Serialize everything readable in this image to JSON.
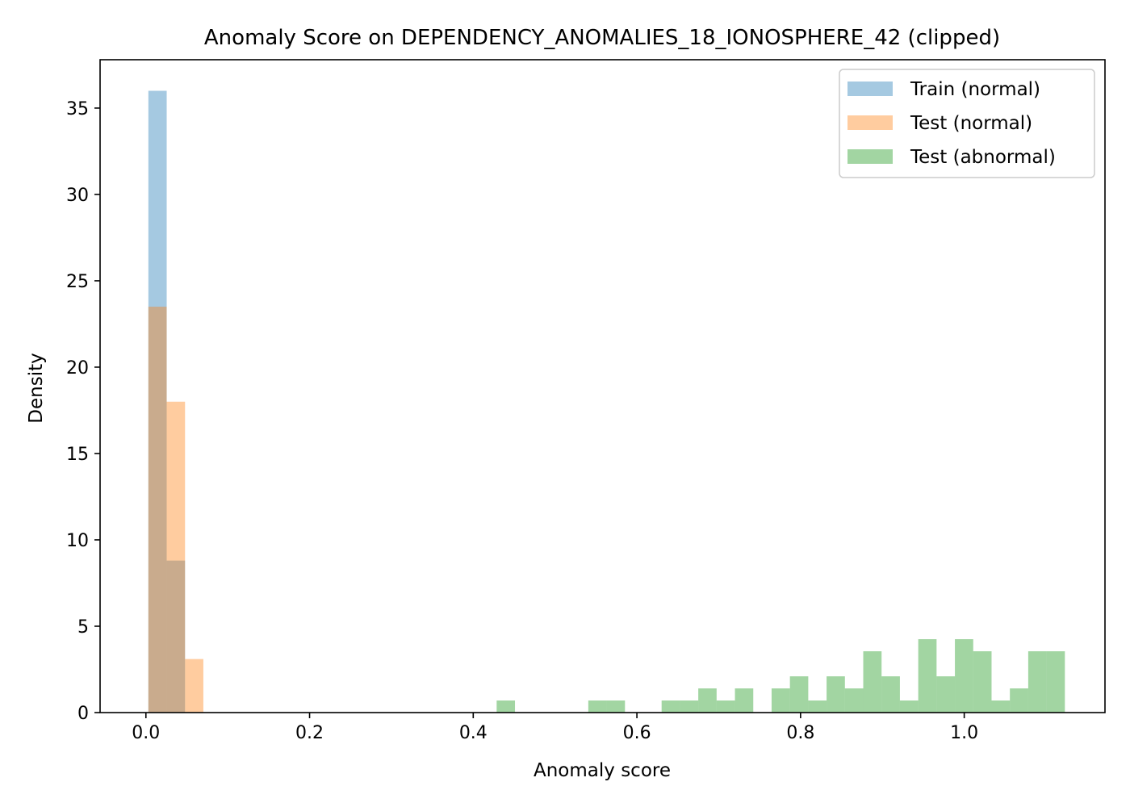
{
  "chart_data": {
    "type": "bar",
    "title": "Anomaly Score on DEPENDENCY_ANOMALIES_18_IONOSPHERE_42 (clipped)",
    "xlabel": "Anomaly score",
    "ylabel": "Density",
    "xlim": [
      -0.056,
      1.172
    ],
    "ylim": [
      0,
      37.8
    ],
    "xticks": [
      0.0,
      0.2,
      0.4,
      0.6,
      0.8,
      1.0
    ],
    "xtick_labels": [
      "0.0",
      "0.2",
      "0.4",
      "0.6",
      "0.8",
      "1.0"
    ],
    "yticks": [
      0,
      5,
      10,
      15,
      20,
      25,
      30,
      35
    ],
    "ytick_labels": [
      "0",
      "5",
      "10",
      "15",
      "20",
      "25",
      "30",
      "35"
    ],
    "grid": false,
    "legend_position": "top-right",
    "bin_width": 0.0224,
    "series": [
      {
        "name": "Train (normal)",
        "color": "#1f77b4",
        "opacity": 0.4,
        "bins": [
          {
            "x0": 0.003,
            "x1": 0.0254,
            "density": 36.0
          },
          {
            "x0": 0.0254,
            "x1": 0.0478,
            "density": 8.8
          }
        ]
      },
      {
        "name": "Test (normal)",
        "color": "#ff7f0e",
        "opacity": 0.4,
        "bins": [
          {
            "x0": 0.003,
            "x1": 0.0254,
            "density": 23.5
          },
          {
            "x0": 0.0254,
            "x1": 0.0478,
            "density": 18.0
          },
          {
            "x0": 0.0478,
            "x1": 0.0702,
            "density": 3.1
          }
        ]
      },
      {
        "name": "Test (abnormal)",
        "color": "#2ca02c",
        "opacity": 0.44,
        "bins": [
          {
            "x0": 0.4286,
            "x1": 0.451,
            "density": 0.7
          },
          {
            "x0": 0.5406,
            "x1": 0.563,
            "density": 0.7
          },
          {
            "x0": 0.563,
            "x1": 0.5854,
            "density": 0.7
          },
          {
            "x0": 0.6302,
            "x1": 0.6526,
            "density": 0.7
          },
          {
            "x0": 0.6526,
            "x1": 0.675,
            "density": 0.7
          },
          {
            "x0": 0.675,
            "x1": 0.6974,
            "density": 1.4
          },
          {
            "x0": 0.6974,
            "x1": 0.7198,
            "density": 0.7
          },
          {
            "x0": 0.7198,
            "x1": 0.7422,
            "density": 1.4
          },
          {
            "x0": 0.7646,
            "x1": 0.787,
            "density": 1.4
          },
          {
            "x0": 0.787,
            "x1": 0.8094,
            "density": 2.1
          },
          {
            "x0": 0.8094,
            "x1": 0.8318,
            "density": 0.7
          },
          {
            "x0": 0.8318,
            "x1": 0.8542,
            "density": 2.1
          },
          {
            "x0": 0.8542,
            "x1": 0.8766,
            "density": 1.4
          },
          {
            "x0": 0.8766,
            "x1": 0.899,
            "density": 3.55
          },
          {
            "x0": 0.899,
            "x1": 0.9214,
            "density": 2.1
          },
          {
            "x0": 0.9214,
            "x1": 0.9438,
            "density": 0.7
          },
          {
            "x0": 0.9438,
            "x1": 0.9662,
            "density": 4.25
          },
          {
            "x0": 0.9662,
            "x1": 0.9886,
            "density": 2.1
          },
          {
            "x0": 0.9886,
            "x1": 1.011,
            "density": 4.25
          },
          {
            "x0": 1.011,
            "x1": 1.0334,
            "density": 3.55
          },
          {
            "x0": 1.0334,
            "x1": 1.0558,
            "density": 0.7
          },
          {
            "x0": 1.0558,
            "x1": 1.0782,
            "density": 1.4
          },
          {
            "x0": 1.0782,
            "x1": 1.1006,
            "density": 3.55
          },
          {
            "x0": 1.1006,
            "x1": 1.123,
            "density": 3.55
          }
        ]
      }
    ]
  }
}
